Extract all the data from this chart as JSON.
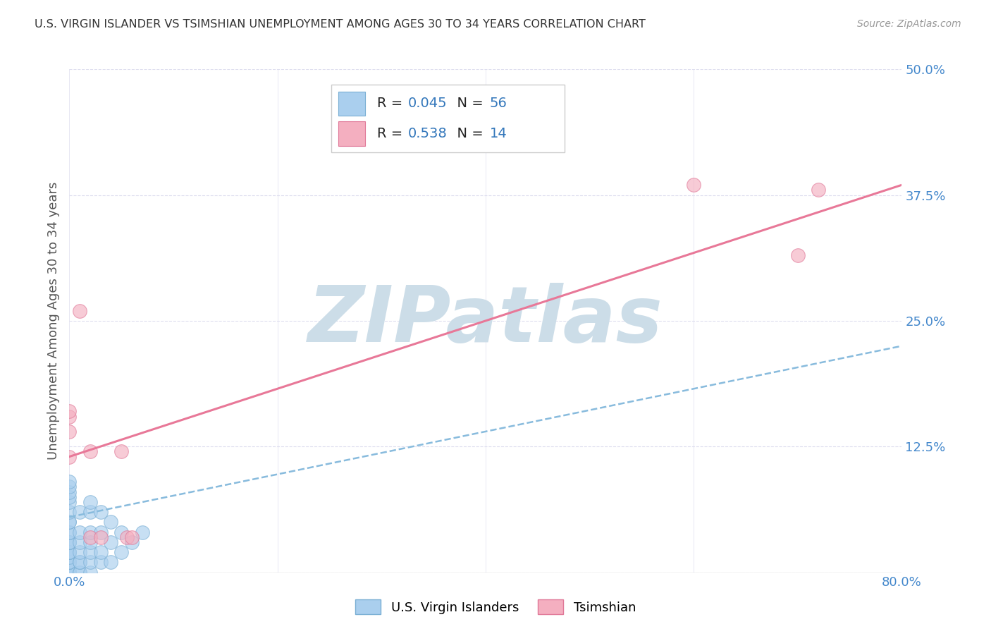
{
  "title": "U.S. VIRGIN ISLANDER VS TSIMSHIAN UNEMPLOYMENT AMONG AGES 30 TO 34 YEARS CORRELATION CHART",
  "source": "Source: ZipAtlas.com",
  "ylabel": "Unemployment Among Ages 30 to 34 years",
  "xlim": [
    0.0,
    0.8
  ],
  "ylim": [
    0.0,
    0.5
  ],
  "xticks": [
    0.0,
    0.2,
    0.4,
    0.6,
    0.8
  ],
  "yticks": [
    0.0,
    0.125,
    0.25,
    0.375,
    0.5
  ],
  "xtick_labels": [
    "0.0%",
    "",
    "",
    "",
    "80.0%"
  ],
  "ytick_labels": [
    "",
    "12.5%",
    "25.0%",
    "37.5%",
    "50.0%"
  ],
  "blue_R": 0.045,
  "blue_N": 56,
  "pink_R": 0.538,
  "pink_N": 14,
  "blue_color": "#aacfee",
  "pink_color": "#f4afc0",
  "blue_edge_color": "#7aafd4",
  "pink_edge_color": "#e07898",
  "blue_line_color": "#88bbdd",
  "pink_line_color": "#e87898",
  "legend_color": "#3377bb",
  "watermark": "ZIPatlas",
  "watermark_color": "#ccdde8",
  "blue_scatter_x": [
    0.0,
    0.0,
    0.0,
    0.0,
    0.0,
    0.0,
    0.0,
    0.0,
    0.0,
    0.0,
    0.0,
    0.0,
    0.0,
    0.0,
    0.0,
    0.0,
    0.0,
    0.0,
    0.0,
    0.0,
    0.0,
    0.0,
    0.0,
    0.0,
    0.0,
    0.0,
    0.0,
    0.0,
    0.0,
    0.0,
    0.01,
    0.01,
    0.01,
    0.01,
    0.01,
    0.01,
    0.01,
    0.01,
    0.02,
    0.02,
    0.02,
    0.02,
    0.02,
    0.02,
    0.02,
    0.03,
    0.03,
    0.03,
    0.03,
    0.04,
    0.04,
    0.04,
    0.05,
    0.05,
    0.06,
    0.07
  ],
  "blue_scatter_y": [
    0.0,
    0.0,
    0.0,
    0.0,
    0.0,
    0.0,
    0.0,
    0.0,
    0.005,
    0.005,
    0.01,
    0.01,
    0.01,
    0.015,
    0.02,
    0.02,
    0.02,
    0.03,
    0.03,
    0.03,
    0.04,
    0.04,
    0.05,
    0.05,
    0.06,
    0.07,
    0.075,
    0.08,
    0.085,
    0.09,
    0.0,
    0.0,
    0.01,
    0.01,
    0.02,
    0.03,
    0.04,
    0.06,
    0.0,
    0.01,
    0.02,
    0.03,
    0.04,
    0.06,
    0.07,
    0.01,
    0.02,
    0.04,
    0.06,
    0.01,
    0.03,
    0.05,
    0.02,
    0.04,
    0.03,
    0.04
  ],
  "pink_scatter_x": [
    0.0,
    0.0,
    0.0,
    0.0,
    0.01,
    0.02,
    0.02,
    0.03,
    0.055,
    0.06,
    0.6,
    0.7,
    0.72,
    0.05
  ],
  "pink_scatter_y": [
    0.14,
    0.155,
    0.16,
    0.115,
    0.26,
    0.035,
    0.12,
    0.035,
    0.035,
    0.035,
    0.385,
    0.315,
    0.38,
    0.12
  ],
  "blue_trendline_x": [
    0.0,
    0.8
  ],
  "blue_trendline_y": [
    0.055,
    0.225
  ],
  "pink_trendline_x": [
    0.0,
    0.8
  ],
  "pink_trendline_y": [
    0.115,
    0.385
  ],
  "grid_color": "#ddddee",
  "spine_color": "#cccccc",
  "tick_color": "#4488cc",
  "background_color": "#ffffff",
  "bottom_legend_labels": [
    "U.S. Virgin Islanders",
    "Tsimshian"
  ]
}
